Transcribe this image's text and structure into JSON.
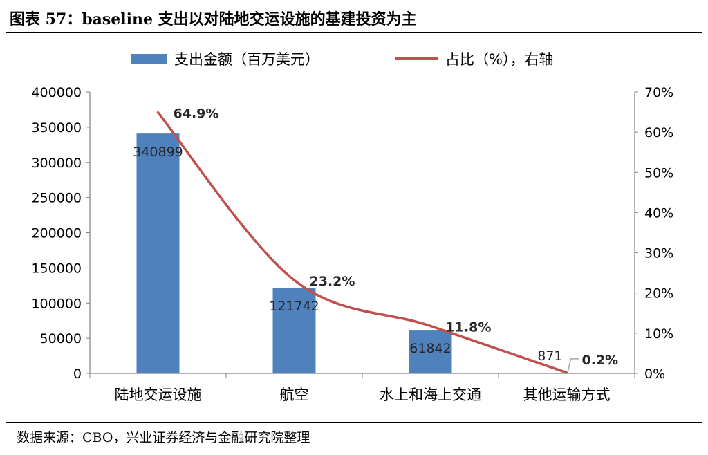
{
  "figure_title": "图表 57：baseline 支出以对陆地交运设施的基建投资为主",
  "source": "数据来源：CBO，兴业证券经济与金融研究院整理",
  "colors": {
    "bar": "#4f81bd",
    "line": "#c0504d",
    "axis": "#808080",
    "grid": "#d9d9d9"
  },
  "legend": {
    "bar_label": "支出金额（百万美元）",
    "line_label": "占比（%），右轴"
  },
  "chart_data": {
    "type": "bar",
    "categories": [
      "陆地交运设施",
      "航空",
      "水上和海上交通",
      "其他运输方式"
    ],
    "series": [
      {
        "name": "支出金额（百万美元）",
        "type": "bar",
        "axis": "left",
        "values": [
          340899,
          121742,
          61842,
          871
        ],
        "labels": [
          "340899",
          "121742",
          "61842",
          "871"
        ]
      },
      {
        "name": "占比（%），右轴",
        "type": "line",
        "axis": "right",
        "values": [
          64.9,
          23.2,
          11.8,
          0.2
        ],
        "labels": [
          "64.9%",
          "23.2%",
          "11.8%",
          "0.2%"
        ]
      }
    ],
    "left_axis": {
      "min": 0,
      "max": 400000,
      "ticks": [
        "0",
        "50000",
        "100000",
        "150000",
        "200000",
        "250000",
        "300000",
        "350000",
        "400000"
      ]
    },
    "right_axis": {
      "min": 0,
      "max": 70,
      "ticks": [
        "0%",
        "10%",
        "20%",
        "30%",
        "40%",
        "50%",
        "60%",
        "70%"
      ]
    },
    "grid": true,
    "legend_position": "top"
  }
}
